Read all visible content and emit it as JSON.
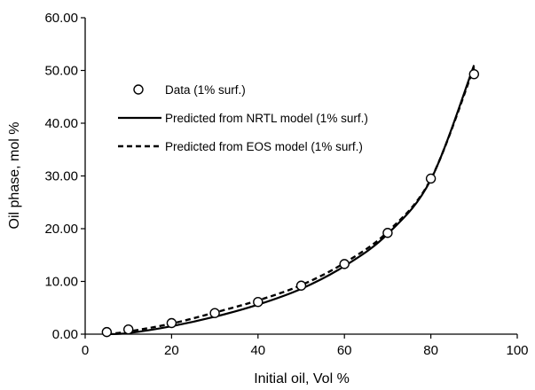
{
  "chart_data": {
    "type": "line",
    "title": "",
    "xlabel": "Initial oil, Vol %",
    "ylabel": "Oil phase, mol %",
    "xlim": [
      0,
      100
    ],
    "ylim": [
      0,
      60
    ],
    "x_ticks": [
      0,
      20,
      40,
      60,
      80,
      100
    ],
    "y_ticks": [
      0,
      10,
      20,
      30,
      40,
      50,
      60
    ],
    "x_tick_labels": [
      "0",
      "20",
      "40",
      "60",
      "80",
      "100"
    ],
    "y_tick_labels": [
      "0.00",
      "10.00",
      "20.00",
      "30.00",
      "40.00",
      "50.00",
      "60.00"
    ],
    "grid": false,
    "legend_position": "top-left",
    "series": [
      {
        "name": "Data (1% surf.)",
        "kind": "markers",
        "marker": "open-circle",
        "x": [
          5,
          10,
          20,
          30,
          40,
          50,
          60,
          70,
          80,
          90
        ],
        "y": [
          0.4,
          0.9,
          2.1,
          4.0,
          6.1,
          9.2,
          13.3,
          19.2,
          29.5,
          49.3
        ]
      },
      {
        "name": "Predicted  from NRTL model (1% surf.)",
        "kind": "line",
        "style": "solid",
        "x": [
          5,
          10,
          20,
          30,
          40,
          50,
          60,
          70,
          80,
          90
        ],
        "y": [
          0.0,
          0.2,
          1.5,
          3.3,
          5.6,
          8.6,
          12.9,
          19.0,
          29.3,
          51.0
        ]
      },
      {
        "name": "Predicted from EOS model (1% surf.)",
        "kind": "line",
        "style": "dashed",
        "x": [
          5,
          10,
          20,
          30,
          40,
          50,
          60,
          70,
          80,
          90
        ],
        "y": [
          0.0,
          0.5,
          2.0,
          4.1,
          6.4,
          9.3,
          13.5,
          19.4,
          29.4,
          50.6
        ]
      }
    ]
  }
}
